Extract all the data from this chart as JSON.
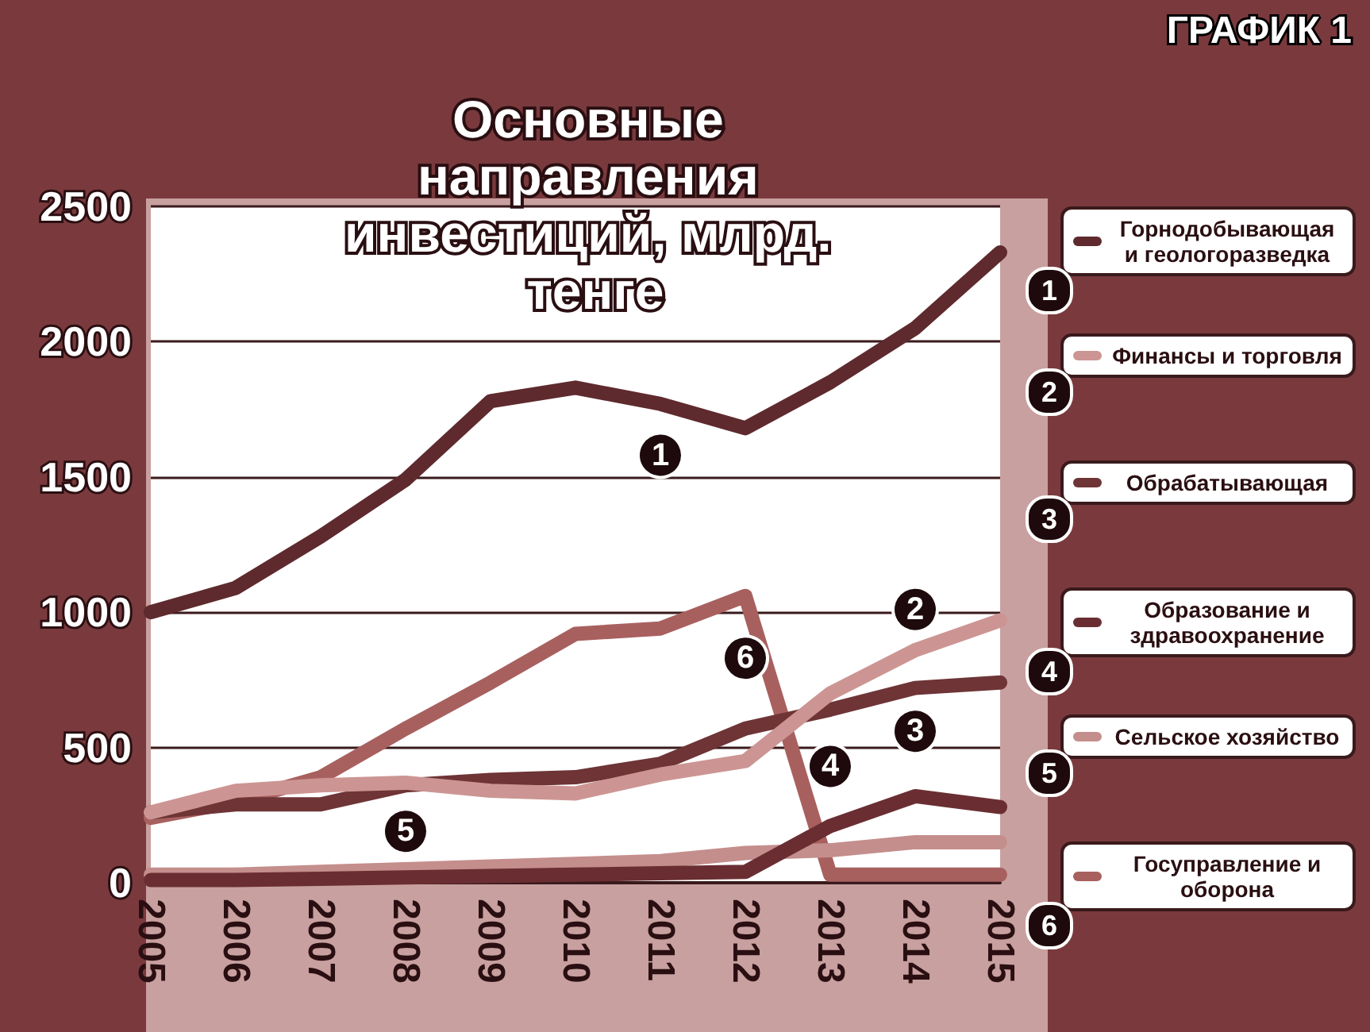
{
  "chart_data": {
    "type": "line",
    "title": "Основные направления инвестиций, млрд. тенге",
    "categories": [
      "2005",
      "2006",
      "2007",
      "2008",
      "2009",
      "2010",
      "2011",
      "2012",
      "2013",
      "2014",
      "2015"
    ],
    "series": [
      {
        "name": "Горнодобывающая и геологоразведка",
        "color": "#5e2a2e",
        "values": [
          1000,
          1090,
          1280,
          1490,
          1780,
          1830,
          1770,
          1680,
          1850,
          2050,
          2330
        ]
      },
      {
        "name": "Финансы и торговля",
        "color": "#cc9593",
        "values": [
          260,
          340,
          360,
          370,
          340,
          330,
          400,
          450,
          700,
          860,
          970
        ]
      },
      {
        "name": "Обрабатывающая",
        "color": "#6e3436",
        "values": [
          260,
          290,
          290,
          360,
          380,
          390,
          440,
          570,
          640,
          720,
          740
        ]
      },
      {
        "name": "Образование и здравоохранение",
        "color": "#6a2e32",
        "values": [
          10,
          10,
          15,
          20,
          25,
          30,
          35,
          40,
          210,
          320,
          280
        ]
      },
      {
        "name": "Сельское хозяйство",
        "color": "#c48e8c",
        "values": [
          30,
          30,
          40,
          50,
          60,
          70,
          80,
          110,
          120,
          150,
          150
        ]
      },
      {
        "name": "Госуправление и оборона",
        "color": "#a8605f",
        "values": [
          240,
          300,
          390,
          570,
          740,
          920,
          940,
          1060,
          30,
          30,
          30
        ]
      }
    ],
    "ylim": [
      0,
      2500
    ],
    "yticks": [
      0,
      500,
      1000,
      1500,
      2000,
      2500
    ],
    "grid": "y",
    "legend": "right",
    "line_style": "solid",
    "annotations": [
      "ГРАФИК 1",
      {
        "text": "1",
        "x": "2011",
        "y": 1580
      },
      {
        "text": "2",
        "x": "2014",
        "y": 1010
      },
      {
        "text": "3",
        "x": "2014",
        "y": 560
      },
      {
        "text": "4",
        "x": "2013",
        "y": 430
      },
      {
        "text": "5",
        "x": "2008",
        "y": 190
      },
      {
        "text": "6",
        "x": "2012",
        "y": 830
      }
    ]
  }
}
